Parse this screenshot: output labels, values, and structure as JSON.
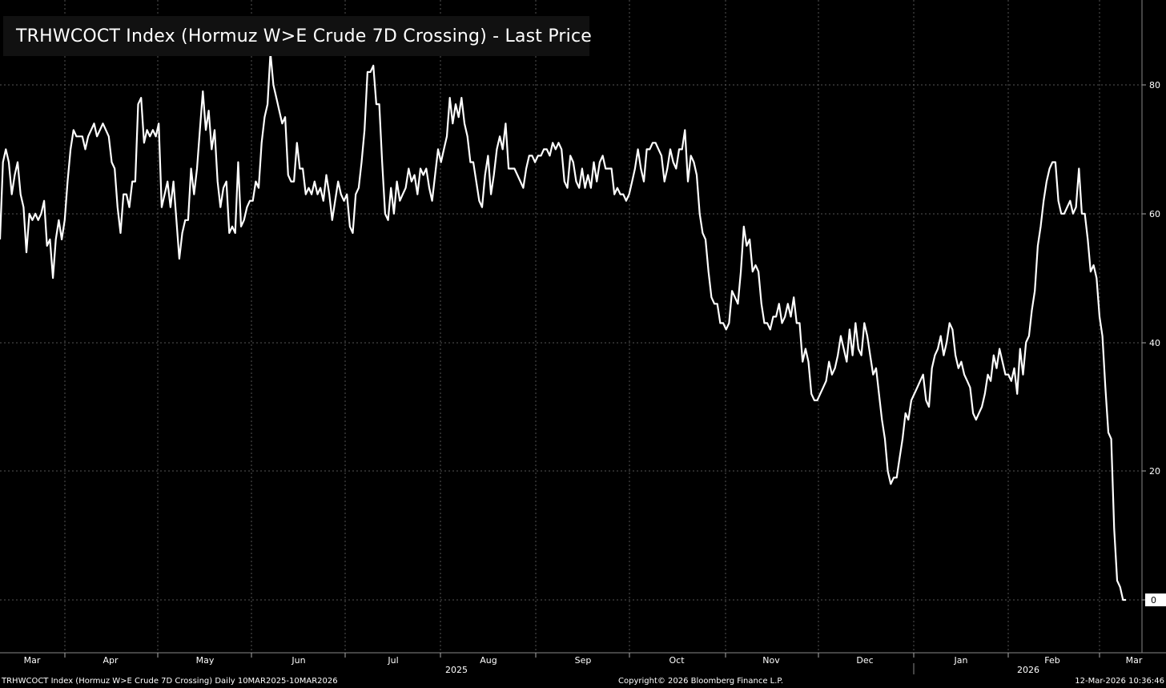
{
  "chart_data": {
    "type": "line",
    "title": "TRHWCOCT Index (Hormuz W>E Crude 7D Crossing) - Last Price",
    "series_name": "TRHWCOCT Index (Hormuz W>E Crude 7D Crossing) - Last Price",
    "x_start": "2025-03-10",
    "x_end": "2026-03-10",
    "x_month_labels": [
      "Mar",
      "Apr",
      "May",
      "Jun",
      "Jul",
      "Aug",
      "Sep",
      "Oct",
      "Nov",
      "Dec",
      "Jan",
      "Feb",
      "Mar"
    ],
    "year_labels": [
      "2025",
      "2026"
    ],
    "y_ticks": [
      "80",
      "60",
      "40",
      "20",
      "0"
    ],
    "ylim": [
      -8,
      92
    ],
    "last_value_label": "0",
    "grid": true,
    "line_color": "#ffffff",
    "background": "#000000",
    "values": [
      56,
      68,
      70,
      68,
      63,
      66,
      68,
      63,
      61,
      54,
      60,
      59,
      60,
      59,
      60,
      62,
      55,
      56,
      50,
      56,
      59,
      56,
      59,
      65,
      70,
      73,
      72,
      72,
      72,
      70,
      72,
      73,
      74,
      72,
      73,
      74,
      73,
      72,
      68,
      67,
      61,
      57,
      63,
      63,
      61,
      65,
      65,
      77,
      78,
      71,
      73,
      72,
      73,
      72,
      74,
      61,
      63,
      65,
      61,
      65,
      59,
      53,
      57,
      59,
      59,
      67,
      63,
      67,
      73,
      79,
      73,
      76,
      70,
      73,
      65,
      61,
      64,
      65,
      57,
      58,
      57,
      68,
      58,
      59,
      61,
      62,
      62,
      65,
      64,
      71,
      75,
      77,
      85,
      80,
      78,
      76,
      74,
      75,
      66,
      65,
      65,
      71,
      67,
      67,
      63,
      64,
      63,
      65,
      63,
      64,
      62,
      66,
      63,
      59,
      62,
      65,
      63,
      62,
      63,
      58,
      57,
      63,
      64,
      68,
      73,
      82,
      82,
      83,
      77,
      77,
      68,
      60,
      59,
      64,
      60,
      65,
      62,
      63,
      64,
      67,
      65,
      66,
      63,
      67,
      66,
      67,
      64,
      62,
      66,
      70,
      68,
      70,
      72,
      78,
      74,
      77,
      75,
      78,
      74,
      72,
      68,
      68,
      65,
      62,
      61,
      66,
      69,
      63,
      66,
      70,
      72,
      70,
      74,
      67,
      67,
      67,
      66,
      65,
      64,
      67,
      69,
      69,
      68,
      69,
      69,
      70,
      70,
      69,
      71,
      70,
      71,
      70,
      65,
      64,
      69,
      68,
      65,
      64,
      67,
      64,
      66,
      64,
      68,
      65,
      68,
      69,
      67,
      67,
      67,
      63,
      64,
      63,
      63,
      62,
      63,
      65,
      67,
      70,
      67,
      65,
      70,
      70,
      71,
      71,
      70,
      69,
      65,
      67,
      70,
      68,
      67,
      70,
      70,
      73,
      65,
      69,
      68,
      66,
      60,
      57,
      56,
      51,
      47,
      46,
      46,
      43,
      43,
      42,
      43,
      48,
      47,
      46,
      51,
      58,
      55,
      56,
      51,
      52,
      51,
      46,
      43,
      43,
      42,
      44,
      44,
      46,
      43,
      44,
      46,
      44,
      47,
      43,
      43,
      37,
      39,
      37,
      32,
      31,
      31,
      32,
      33,
      34,
      37,
      35,
      36,
      38,
      41,
      39,
      37,
      42,
      38,
      43,
      39,
      38,
      43,
      41,
      38,
      35,
      36,
      32,
      28,
      25,
      20,
      18,
      19,
      19,
      22,
      25,
      29,
      28,
      31,
      32,
      33,
      34,
      35,
      31,
      30,
      36,
      38,
      39,
      41,
      38,
      40,
      43,
      42,
      38,
      36,
      37,
      35,
      34,
      33,
      29,
      28,
      29,
      30,
      32,
      35,
      34,
      38,
      36,
      39,
      37,
      35,
      35,
      34,
      36,
      32,
      39,
      35,
      40,
      41,
      45,
      48,
      55,
      58,
      62,
      65,
      67,
      68,
      68,
      62,
      60,
      60,
      61,
      62,
      60,
      61,
      67,
      60,
      60,
      56,
      51,
      52,
      50,
      44,
      41,
      33,
      26,
      25,
      11,
      3,
      2,
      0,
      0
    ]
  },
  "legend": {
    "label": "TRHWCOCT Index (Hormuz W>E Crude 7D Crossing) - Last Price"
  },
  "footer": {
    "left": "TRHWCOCT Index (Hormuz W>E Crude 7D Crossing) Daily 10MAR2025-10MAR2026",
    "center": "Copyright© 2026 Bloomberg Finance L.P.",
    "right": "12-Mar-2026 10:36:46"
  }
}
